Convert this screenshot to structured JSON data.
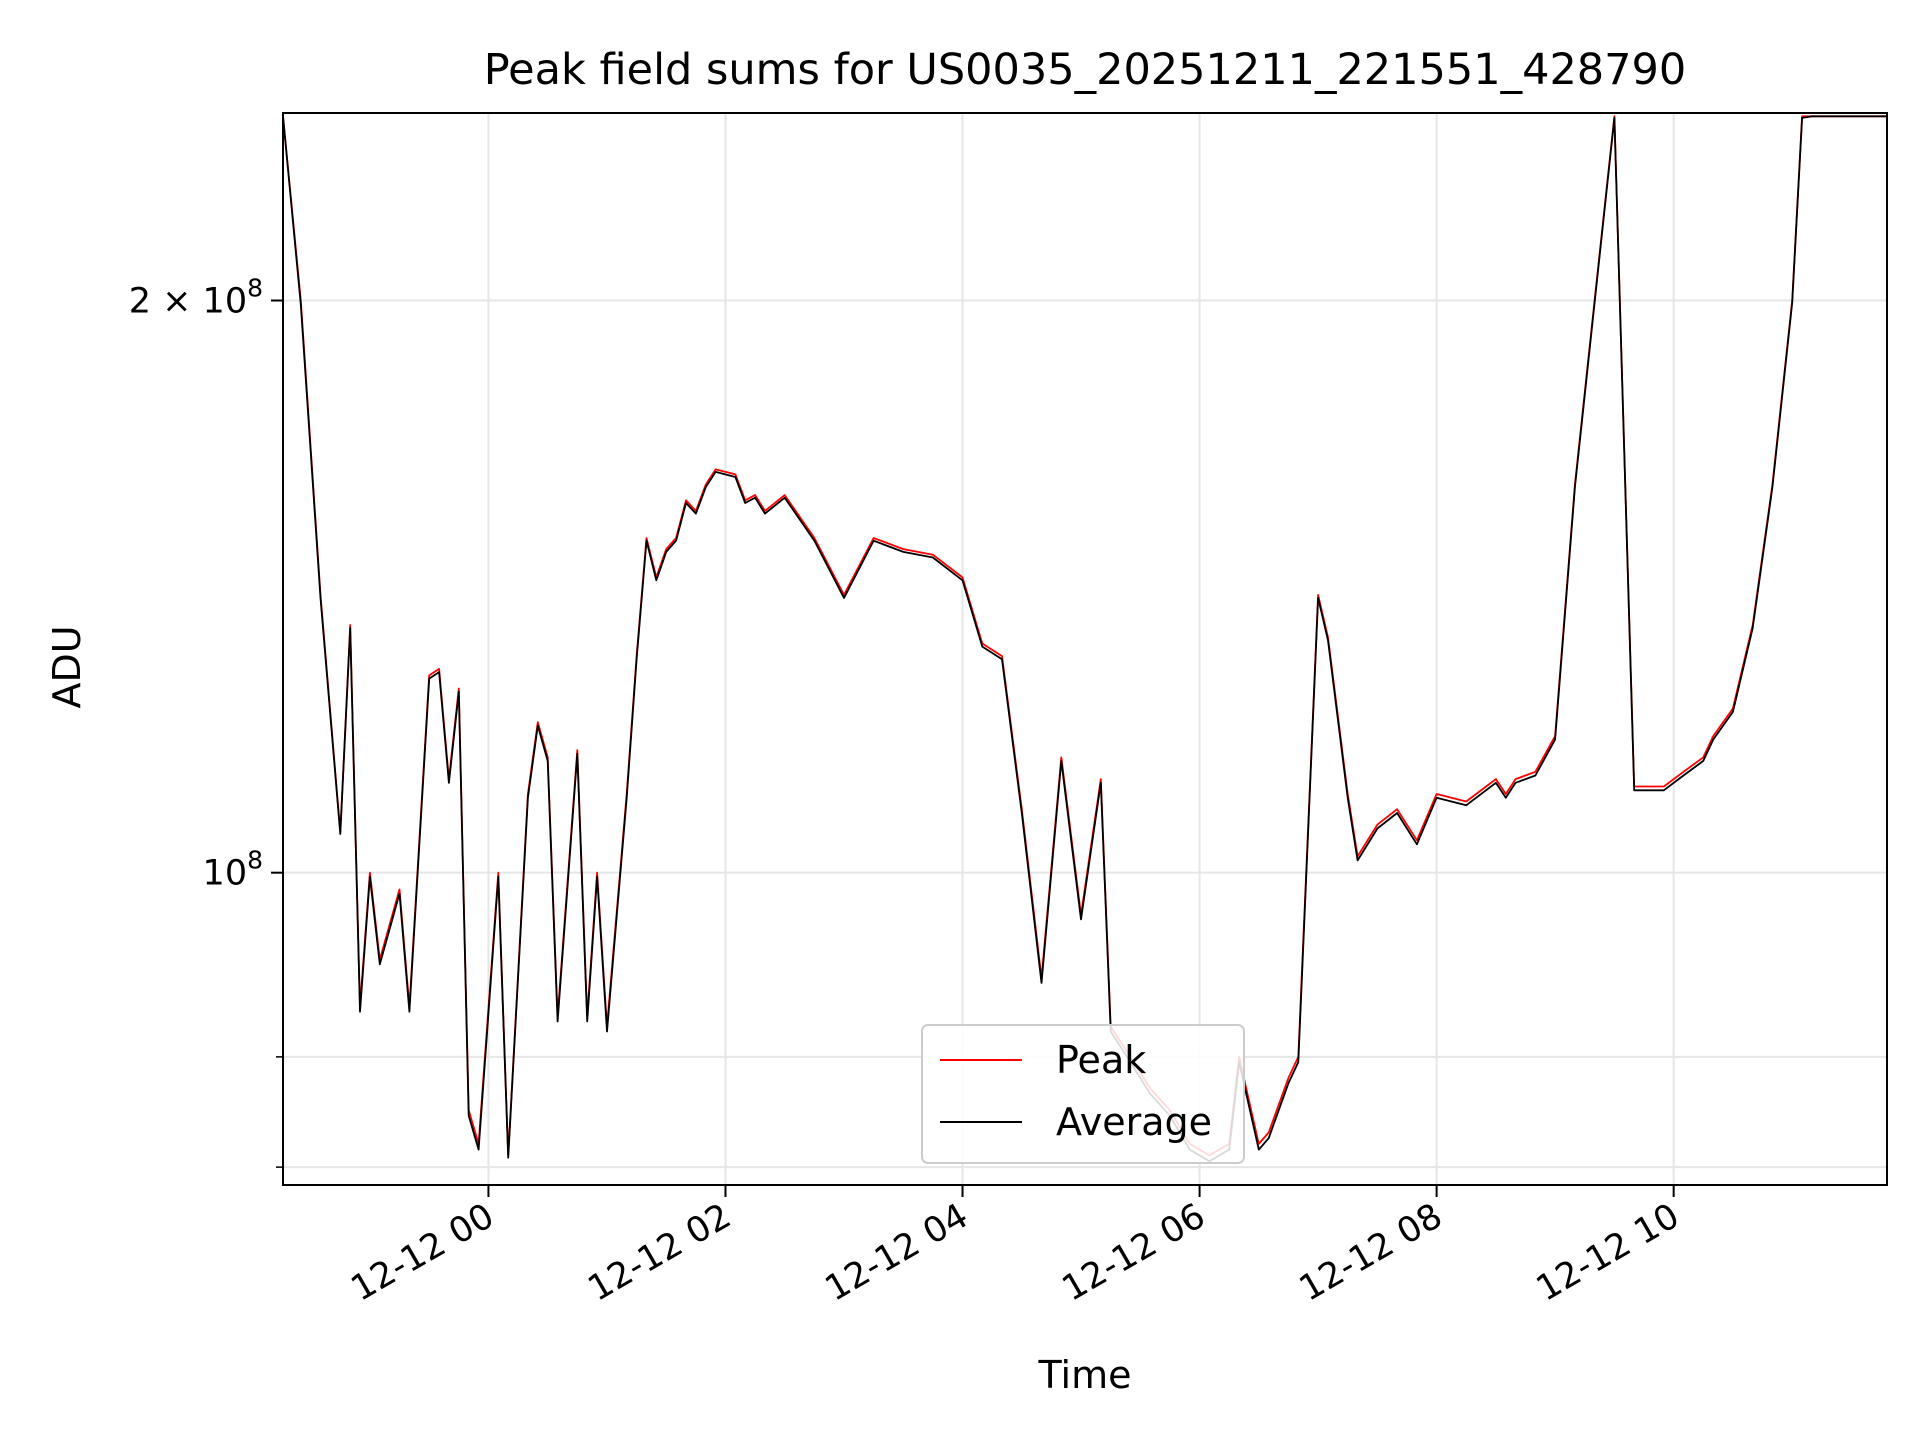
{
  "chart_data": {
    "type": "line",
    "title": "Peak field sums for US0035_20251211_221551_428790",
    "xlabel": "Time",
    "ylabel": "ADU",
    "y_scale": "log",
    "grid": true,
    "legend_position": "bottom-center",
    "xlim": [
      "2025-12-11 22:16",
      "2025-12-12 11:48"
    ],
    "ylim": [
      68500000,
      251000000
    ],
    "x_ticks": [
      "12-12 00",
      "12-12 02",
      "12-12 04",
      "12-12 06",
      "12-12 08",
      "12-12 10"
    ],
    "x_tick_times": [
      "2025-12-12 00:00",
      "2025-12-12 02:00",
      "2025-12-12 04:00",
      "2025-12-12 06:00",
      "2025-12-12 08:00",
      "2025-12-12 10:00"
    ],
    "y_major_ticks": [
      {
        "value": 100000000,
        "base": "10",
        "exp": "8",
        "prefix": ""
      },
      {
        "value": 200000000,
        "base": "10",
        "exp": "8",
        "prefix": "2 × "
      }
    ],
    "y_minor_ticks": [
      70000000,
      80000000
    ],
    "colors": {
      "Peak": "#ff0000",
      "Average": "#000000"
    },
    "series": [
      {
        "name": "Peak",
        "x": [
          "2025-12-11 22:16",
          "2025-12-11 22:25",
          "2025-12-11 22:35",
          "2025-12-11 22:45",
          "2025-12-11 22:50",
          "2025-12-11 22:55",
          "2025-12-11 23:00",
          "2025-12-11 23:05",
          "2025-12-11 23:15",
          "2025-12-11 23:20",
          "2025-12-11 23:30",
          "2025-12-11 23:35",
          "2025-12-11 23:40",
          "2025-12-11 23:45",
          "2025-12-11 23:50",
          "2025-12-11 23:55",
          "2025-12-12 00:05",
          "2025-12-12 00:10",
          "2025-12-12 00:20",
          "2025-12-12 00:25",
          "2025-12-12 00:30",
          "2025-12-12 00:35",
          "2025-12-12 00:45",
          "2025-12-12 00:50",
          "2025-12-12 00:55",
          "2025-12-12 01:00",
          "2025-12-12 01:10",
          "2025-12-12 01:15",
          "2025-12-12 01:20",
          "2025-12-12 01:25",
          "2025-12-12 01:30",
          "2025-12-12 01:35",
          "2025-12-12 01:40",
          "2025-12-12 01:45",
          "2025-12-12 01:50",
          "2025-12-12 01:55",
          "2025-12-12 02:05",
          "2025-12-12 02:10",
          "2025-12-12 02:15",
          "2025-12-12 02:20",
          "2025-12-12 02:30",
          "2025-12-12 02:45",
          "2025-12-12 03:00",
          "2025-12-12 03:15",
          "2025-12-12 03:30",
          "2025-12-12 03:45",
          "2025-12-12 04:00",
          "2025-12-12 04:10",
          "2025-12-12 04:20",
          "2025-12-12 04:30",
          "2025-12-12 04:40",
          "2025-12-12 04:50",
          "2025-12-12 05:00",
          "2025-12-12 05:10",
          "2025-12-12 05:15",
          "2025-12-12 05:25",
          "2025-12-12 05:35",
          "2025-12-12 05:45",
          "2025-12-12 05:55",
          "2025-12-12 06:05",
          "2025-12-12 06:15",
          "2025-12-12 06:20",
          "2025-12-12 06:30",
          "2025-12-12 06:35",
          "2025-12-12 06:45",
          "2025-12-12 06:50",
          "2025-12-12 07:00",
          "2025-12-12 07:05",
          "2025-12-12 07:15",
          "2025-12-12 07:20",
          "2025-12-12 07:30",
          "2025-12-12 07:40",
          "2025-12-12 07:50",
          "2025-12-12 08:00",
          "2025-12-12 08:15",
          "2025-12-12 08:30",
          "2025-12-12 08:35",
          "2025-12-12 08:40",
          "2025-12-12 08:50",
          "2025-12-12 09:00",
          "2025-12-12 09:10",
          "2025-12-12 09:20",
          "2025-12-12 09:30",
          "2025-12-12 09:40",
          "2025-12-12 09:50",
          "2025-12-12 09:55",
          "2025-12-12 10:05",
          "2025-12-12 10:15",
          "2025-12-12 10:20",
          "2025-12-12 10:30",
          "2025-12-12 10:40",
          "2025-12-12 10:50",
          "2025-12-12 11:00",
          "2025-12-12 11:05",
          "2025-12-12 11:10",
          "2025-12-12 11:15",
          "2025-12-12 11:20",
          "2025-12-12 11:30",
          "2025-12-12 11:40",
          "2025-12-12 11:48"
        ],
        "values": [
          250000000,
          200000000,
          140000000,
          105000000,
          135000000,
          85000000,
          100000000,
          90000000,
          98000000,
          85000000,
          127000000,
          128000000,
          112000000,
          125000000,
          75000000,
          72000000,
          100000000,
          71000000,
          110000000,
          120000000,
          115000000,
          84000000,
          116000000,
          84000000,
          100000000,
          83000000,
          110000000,
          130000000,
          150000000,
          143000000,
          148000000,
          150000000,
          157000000,
          155000000,
          160000000,
          163000000,
          162000000,
          157000000,
          158000000,
          155000000,
          158000000,
          150000000,
          140000000,
          150000000,
          148000000,
          147000000,
          143000000,
          132000000,
          130000000,
          108000000,
          88000000,
          115000000,
          95000000,
          112000000,
          83000000,
          80000000,
          77000000,
          75000000,
          72000000,
          71000000,
          72000000,
          80000000,
          72000000,
          73000000,
          78000000,
          80000000,
          140000000,
          133000000,
          110000000,
          102000000,
          106000000,
          108000000,
          104000000,
          110000000,
          109000000,
          112000000,
          110000000,
          112000000,
          113000000,
          118000000,
          160000000,
          200000000,
          250000000,
          111000000,
          111000000,
          111000000,
          113000000,
          115000000,
          118000000,
          122000000,
          135000000,
          160000000,
          200000000,
          250000000,
          250000000,
          250000000,
          250000000,
          250000000,
          250000000,
          250000000
        ]
      },
      {
        "name": "Average",
        "x": [
          "2025-12-11 22:16",
          "2025-12-11 22:25",
          "2025-12-11 22:35",
          "2025-12-11 22:45",
          "2025-12-11 22:50",
          "2025-12-11 22:55",
          "2025-12-11 23:00",
          "2025-12-11 23:05",
          "2025-12-11 23:15",
          "2025-12-11 23:20",
          "2025-12-11 23:30",
          "2025-12-11 23:35",
          "2025-12-11 23:40",
          "2025-12-11 23:45",
          "2025-12-11 23:50",
          "2025-12-11 23:55",
          "2025-12-12 00:05",
          "2025-12-12 00:10",
          "2025-12-12 00:20",
          "2025-12-12 00:25",
          "2025-12-12 00:30",
          "2025-12-12 00:35",
          "2025-12-12 00:45",
          "2025-12-12 00:50",
          "2025-12-12 00:55",
          "2025-12-12 01:00",
          "2025-12-12 01:10",
          "2025-12-12 01:15",
          "2025-12-12 01:20",
          "2025-12-12 01:25",
          "2025-12-12 01:30",
          "2025-12-12 01:35",
          "2025-12-12 01:40",
          "2025-12-12 01:45",
          "2025-12-12 01:50",
          "2025-12-12 01:55",
          "2025-12-12 02:05",
          "2025-12-12 02:10",
          "2025-12-12 02:15",
          "2025-12-12 02:20",
          "2025-12-12 02:30",
          "2025-12-12 02:45",
          "2025-12-12 03:00",
          "2025-12-12 03:15",
          "2025-12-12 03:30",
          "2025-12-12 03:45",
          "2025-12-12 04:00",
          "2025-12-12 04:10",
          "2025-12-12 04:20",
          "2025-12-12 04:30",
          "2025-12-12 04:40",
          "2025-12-12 04:50",
          "2025-12-12 05:00",
          "2025-12-12 05:10",
          "2025-12-12 05:15",
          "2025-12-12 05:25",
          "2025-12-12 05:35",
          "2025-12-12 05:45",
          "2025-12-12 05:55",
          "2025-12-12 06:05",
          "2025-12-12 06:15",
          "2025-12-12 06:20",
          "2025-12-12 06:30",
          "2025-12-12 06:35",
          "2025-12-12 06:45",
          "2025-12-12 06:50",
          "2025-12-12 07:00",
          "2025-12-12 07:05",
          "2025-12-12 07:15",
          "2025-12-12 07:20",
          "2025-12-12 07:30",
          "2025-12-12 07:40",
          "2025-12-12 07:50",
          "2025-12-12 08:00",
          "2025-12-12 08:15",
          "2025-12-12 08:30",
          "2025-12-12 08:35",
          "2025-12-12 08:40",
          "2025-12-12 08:50",
          "2025-12-12 09:00",
          "2025-12-12 09:10",
          "2025-12-12 09:20",
          "2025-12-12 09:30",
          "2025-12-12 09:40",
          "2025-12-12 09:50",
          "2025-12-12 09:55",
          "2025-12-12 10:05",
          "2025-12-12 10:15",
          "2025-12-12 10:20",
          "2025-12-12 10:30",
          "2025-12-12 10:40",
          "2025-12-12 10:50",
          "2025-12-12 11:00",
          "2025-12-12 11:05",
          "2025-12-12 11:10",
          "2025-12-12 11:15",
          "2025-12-12 11:20",
          "2025-12-12 11:30",
          "2025-12-12 11:40",
          "2025-12-12 11:48"
        ],
        "values": [
          250000000,
          199000000,
          139500000,
          104800000,
          134500000,
          84500000,
          99500000,
          89500000,
          97500000,
          84500000,
          126500000,
          127500000,
          111500000,
          124500000,
          74500000,
          71500000,
          99500000,
          70800000,
          109500000,
          119500000,
          114500000,
          83500000,
          115500000,
          83500000,
          99500000,
          82500000,
          109500000,
          129500000,
          149500000,
          142500000,
          147500000,
          149500000,
          156500000,
          154500000,
          159500000,
          162500000,
          161500000,
          156500000,
          157500000,
          154500000,
          157500000,
          149500000,
          139500000,
          149500000,
          147500000,
          146500000,
          142500000,
          131500000,
          129500000,
          107500000,
          87500000,
          114500000,
          94500000,
          111500000,
          82500000,
          79500000,
          76500000,
          74500000,
          71500000,
          70500000,
          71500000,
          79500000,
          71500000,
          72500000,
          77500000,
          79500000,
          139500000,
          132500000,
          109500000,
          101500000,
          105500000,
          107500000,
          103500000,
          109500000,
          108500000,
          111500000,
          109500000,
          111500000,
          112500000,
          117500000,
          159500000,
          199500000,
          249500000,
          110500000,
          110500000,
          110500000,
          112500000,
          114500000,
          117500000,
          121500000,
          134500000,
          159500000,
          199500000,
          249500000,
          250000000,
          250000000,
          250000000,
          250000000,
          250000000,
          250000000
        ]
      }
    ]
  }
}
